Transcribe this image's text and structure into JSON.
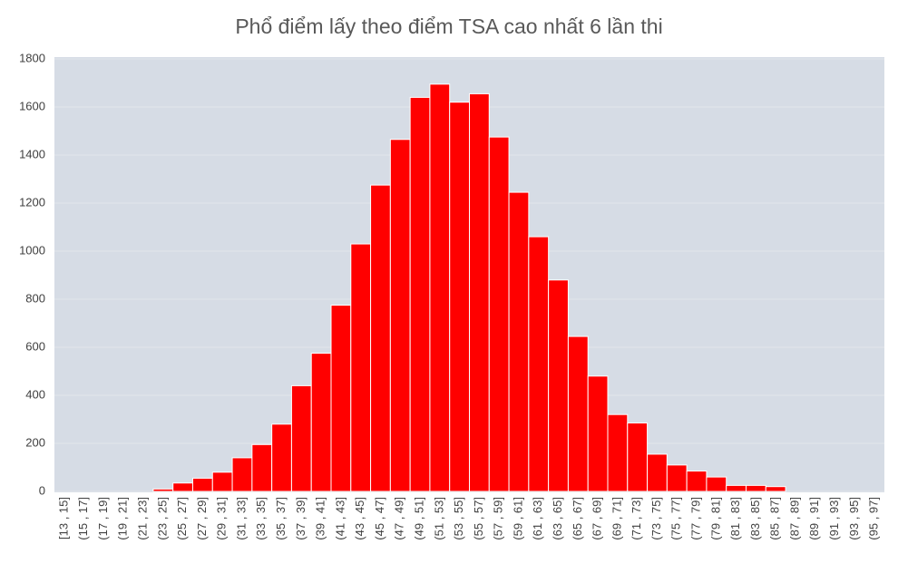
{
  "chart_data": {
    "type": "bar",
    "title": "Phổ điểm lấy theo điểm TSA cao nhất 6 lần thi",
    "categories": [
      "[13 , 15]",
      "(15 , 17]",
      "(17 , 19]",
      "(19 , 21]",
      "(21 , 23]",
      "(23 , 25]",
      "(25 , 27]",
      "(27 , 29]",
      "(29 , 31]",
      "(31 , 33]",
      "(33 , 35]",
      "(35 , 37]",
      "(37 , 39]",
      "(39 , 41]",
      "(41 , 43]",
      "(43 , 45]",
      "(45 , 47]",
      "(47 , 49]",
      "(49 , 51]",
      "(51 , 53]",
      "(53 , 55]",
      "(55 , 57]",
      "(57 , 59]",
      "(59 , 61]",
      "(61 , 63]",
      "(63 , 65]",
      "(65 , 67]",
      "(67 , 69]",
      "(69 , 71]",
      "(71 , 73]",
      "(73 , 75]",
      "(75 , 77]",
      "(77 , 79]",
      "(79 , 81]",
      "(81 , 83]",
      "(83 , 85]",
      "(85 , 87]",
      "(87 , 89]",
      "(89 , 91]",
      "(91 , 93]",
      "(93 , 95]",
      "(95 , 97]"
    ],
    "values": [
      0,
      0,
      0,
      0,
      0,
      10,
      35,
      55,
      80,
      140,
      195,
      280,
      440,
      575,
      775,
      1030,
      1275,
      1465,
      1640,
      1695,
      1620,
      1655,
      1475,
      1245,
      1060,
      880,
      645,
      480,
      320,
      285,
      155,
      110,
      85,
      60,
      25,
      25,
      20,
      0,
      0,
      0,
      0,
      0
    ],
    "color": "#ff0000",
    "ylim": [
      0,
      1800
    ],
    "yticks": [
      0,
      200,
      400,
      600,
      800,
      1000,
      1200,
      1400,
      1600,
      1800
    ],
    "grid": true
  }
}
